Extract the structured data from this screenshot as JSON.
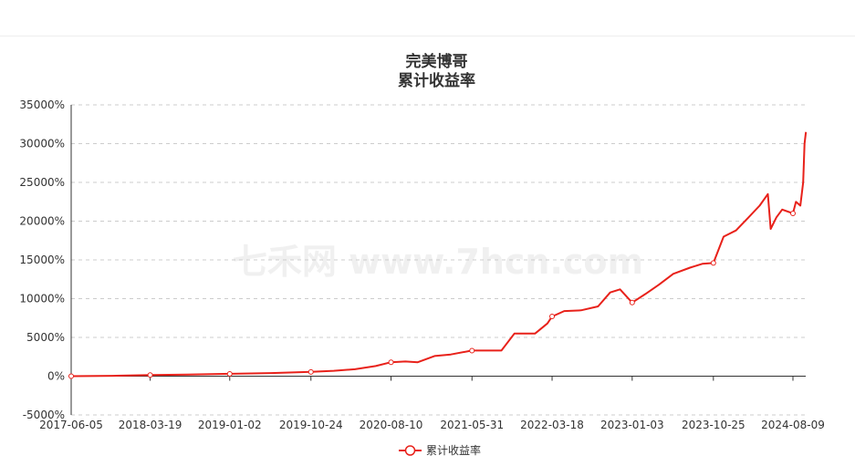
{
  "chart_data": {
    "type": "line",
    "title": "完美博哥",
    "subtitle": "累计收益率",
    "watermark": "七禾网 www.7hcn.com",
    "colors": {
      "series": "#e8211a"
    },
    "y_ticks": [
      "-5000%",
      "0%",
      "5000%",
      "10000%",
      "15000%",
      "20000%",
      "25000%",
      "30000%",
      "35000%"
    ],
    "y_tick_values": [
      -5000,
      0,
      5000,
      10000,
      15000,
      20000,
      25000,
      30000,
      35000
    ],
    "ylim": [
      -5000,
      35000
    ],
    "x_ticks": [
      "2017-06-05",
      "2018-03-19",
      "2019-01-02",
      "2019-10-24",
      "2020-08-10",
      "2021-05-31",
      "2022-03-18",
      "2023-01-03",
      "2023-10-25",
      "2024-08-09"
    ],
    "x_tick_dates": [
      "2017-06-05",
      "2018-03-19",
      "2019-01-02",
      "2019-10-24",
      "2020-08-10",
      "2021-05-31",
      "2022-03-18",
      "2023-01-03",
      "2023-10-25",
      "2024-08-09"
    ],
    "grid": true,
    "legend_position": "bottom-center",
    "series": [
      {
        "name": "累计收益率",
        "x": [
          "2017-06-05",
          "2017-11-01",
          "2018-03-19",
          "2018-08-01",
          "2019-01-02",
          "2019-06-01",
          "2019-10-24",
          "2020-01-15",
          "2020-04-01",
          "2020-06-15",
          "2020-08-10",
          "2020-10-01",
          "2020-11-15",
          "2021-01-15",
          "2021-03-15",
          "2021-05-31",
          "2021-07-15",
          "2021-09-15",
          "2021-11-01",
          "2021-12-15",
          "2022-01-15",
          "2022-03-01",
          "2022-03-18",
          "2022-05-01",
          "2022-07-01",
          "2022-09-01",
          "2022-10-15",
          "2022-11-20",
          "2023-01-03",
          "2023-02-20",
          "2023-04-10",
          "2023-06-01",
          "2023-08-01",
          "2023-09-15",
          "2023-10-25",
          "2023-12-01",
          "2024-01-15",
          "2024-03-01",
          "2024-04-10",
          "2024-05-10",
          "2024-05-20",
          "2024-06-10",
          "2024-07-01",
          "2024-08-09",
          "2024-08-20",
          "2024-09-05",
          "2024-09-15",
          "2024-09-20",
          "2024-09-25"
        ],
        "y": [
          0,
          50,
          150,
          200,
          300,
          400,
          550,
          700,
          900,
          1300,
          1800,
          1900,
          1800,
          2600,
          2800,
          3300,
          3300,
          3300,
          5500,
          5500,
          5500,
          6800,
          7700,
          8400,
          8500,
          9000,
          10800,
          11200,
          9500,
          10600,
          11800,
          13200,
          14000,
          14500,
          14600,
          18000,
          18800,
          20500,
          22000,
          23500,
          19000,
          20500,
          21500,
          21000,
          22500,
          22000,
          25000,
          30000,
          31500
        ]
      }
    ]
  }
}
